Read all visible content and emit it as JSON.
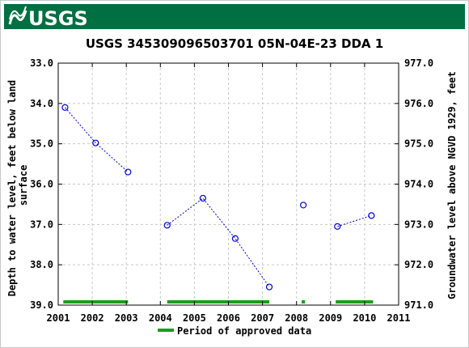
{
  "header": {
    "logo_text": "USGS",
    "brand_color": "#006f41"
  },
  "chart_data": {
    "type": "scatter",
    "title": "USGS 345309096503701 05N-04E-23 DDA 1",
    "ylabel_left": "Depth to water level, feet below land surface",
    "ylabel_right": "Groundwater level above NGVD 1929, feet",
    "x_ticks": [
      "2001",
      "2002",
      "2003",
      "2004",
      "2005",
      "2006",
      "2007",
      "2008",
      "2009",
      "2010",
      "2011"
    ],
    "xlim": [
      2001,
      2011
    ],
    "y_left_ticks": [
      "33.0",
      "34.0",
      "35.0",
      "36.0",
      "37.0",
      "38.0",
      "39.0"
    ],
    "ylim_left": [
      33.0,
      39.0
    ],
    "y_left_inverted": true,
    "y_right_ticks": [
      "977.0",
      "976.0",
      "975.0",
      "974.0",
      "973.0",
      "972.0",
      "971.0"
    ],
    "ylim_right": [
      977.0,
      971.0
    ],
    "grid": true,
    "series": [
      {
        "color": "#0000cc",
        "marker": "open-circle",
        "line": "dotted",
        "segments": [
          [
            [
              2001.2,
              34.1
            ],
            [
              2002.1,
              34.98
            ],
            [
              2003.05,
              35.7
            ]
          ],
          [
            [
              2004.2,
              37.02
            ],
            [
              2005.25,
              36.35
            ],
            [
              2006.2,
              37.35
            ],
            [
              2007.2,
              38.55
            ]
          ],
          [
            [
              2008.2,
              36.52
            ]
          ],
          [
            [
              2009.2,
              37.05
            ],
            [
              2010.2,
              36.78
            ]
          ]
        ]
      }
    ],
    "approved_periods": [
      [
        2001.15,
        2003.05
      ],
      [
        2004.2,
        2007.2
      ],
      [
        2008.15,
        2008.25
      ],
      [
        2009.15,
        2010.25
      ]
    ],
    "approved_color": "#1a9e1a",
    "legend": {
      "label": "Period of approved data",
      "placement": "bottom-center"
    }
  }
}
